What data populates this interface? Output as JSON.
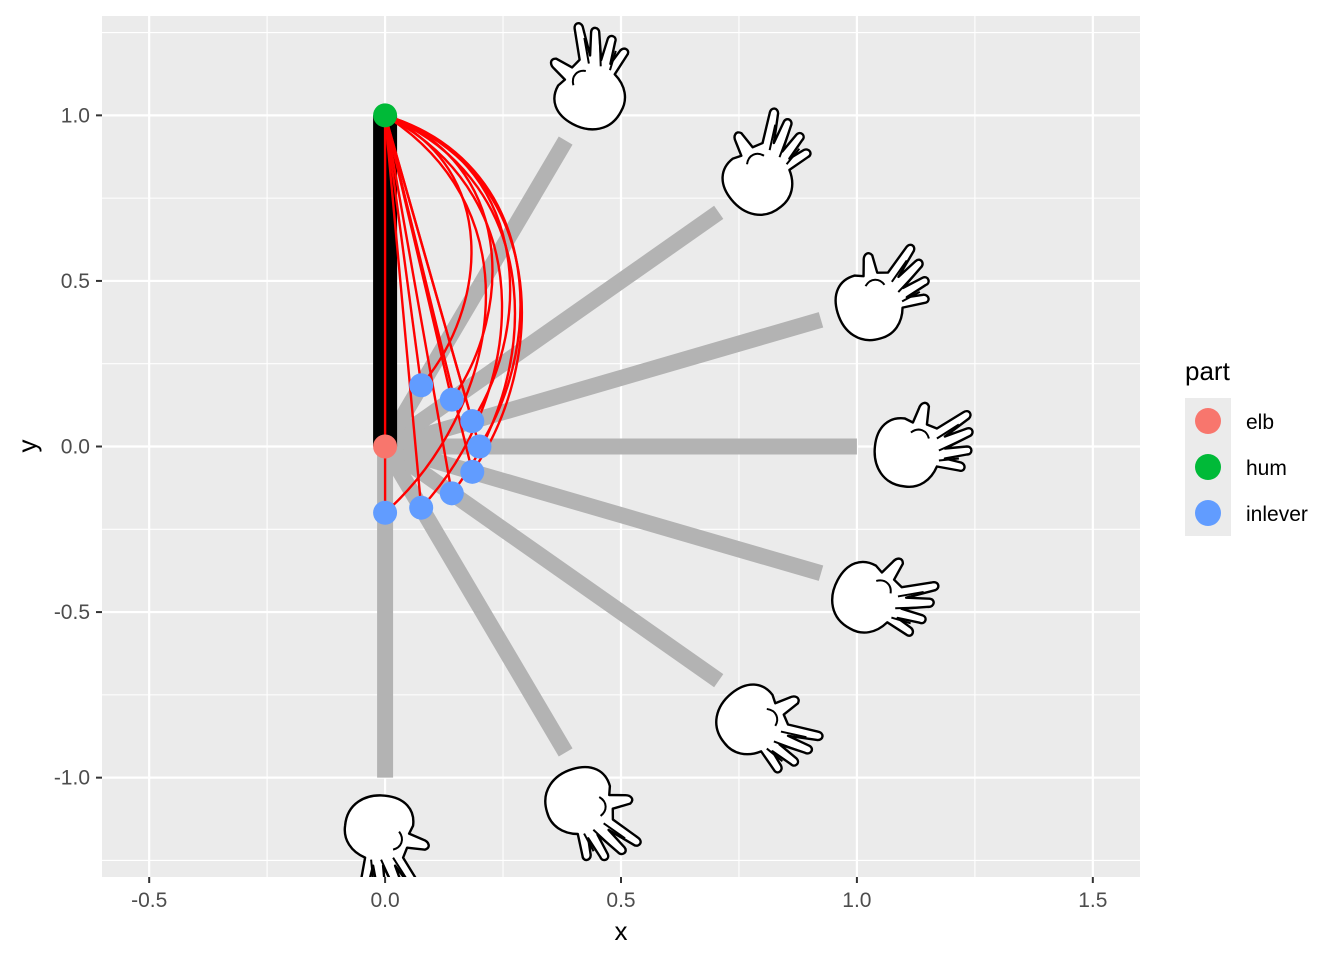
{
  "chart_data": {
    "type": "scatter",
    "title": "",
    "xlabel": "x",
    "ylabel": "y",
    "xlim": [
      -0.6,
      1.6
    ],
    "ylim": [
      -1.3,
      1.3
    ],
    "x_ticks": [
      -0.5,
      0.0,
      0.5,
      1.0,
      1.5
    ],
    "y_ticks": [
      -1.0,
      -0.5,
      0.0,
      0.5,
      1.0
    ],
    "x_tick_labels": [
      "-0.5",
      "0.0",
      "0.5",
      "1.0",
      "1.5"
    ],
    "y_tick_labels": [
      "-1.0",
      "-0.5",
      "0.0",
      "0.5",
      "1.0"
    ],
    "legend": {
      "title": "part",
      "position": "right",
      "entries": [
        {
          "label": "elb",
          "color": "#F8766D"
        },
        {
          "label": "hum",
          "color": "#00BA38"
        },
        {
          "label": "inlever",
          "color": "#619CFF"
        }
      ]
    },
    "humerus": {
      "from": [
        0,
        1
      ],
      "to": [
        0,
        0
      ],
      "color": "#000000"
    },
    "points": [
      {
        "part": "hum",
        "x": 0.0,
        "y": 1.0
      },
      {
        "part": "elb",
        "x": 0.0,
        "y": 0.0
      },
      {
        "part": "inlever",
        "x": 0.0,
        "y": -0.2
      },
      {
        "part": "inlever",
        "x": 0.0765,
        "y": -0.1848
      },
      {
        "part": "inlever",
        "x": 0.1414,
        "y": -0.1414
      },
      {
        "part": "inlever",
        "x": 0.1848,
        "y": -0.0765
      },
      {
        "part": "inlever",
        "x": 0.2,
        "y": 0.0
      },
      {
        "part": "inlever",
        "x": 0.1848,
        "y": 0.0765
      },
      {
        "part": "inlever",
        "x": 0.1414,
        "y": 0.1414
      },
      {
        "part": "inlever",
        "x": 0.0765,
        "y": 0.1848
      }
    ],
    "forearm_angles_deg": [
      -90,
      -67.5,
      -45,
      -22.5,
      0,
      22.5,
      45,
      67.5
    ],
    "forearm_length": 1.0,
    "forearm_color": "#b3b3b3",
    "muscle_color": "#ff0000",
    "muscle_origin": [
      0,
      1
    ]
  }
}
